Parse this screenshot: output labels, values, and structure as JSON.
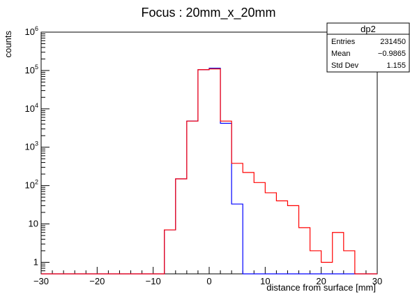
{
  "chart_data": {
    "type": "histogram",
    "title": "Focus : 20mm_x_20mm",
    "xlabel": "distance from surface [mm]",
    "ylabel": "counts",
    "xlim": [
      -30,
      30
    ],
    "ylim": [
      0.5,
      1000000
    ],
    "yscale": "log",
    "grid": false,
    "bin_width": 2,
    "x_ticks": [
      {
        "value": -30,
        "label": "−30"
      },
      {
        "value": -20,
        "label": "−20"
      },
      {
        "value": -10,
        "label": "−10"
      },
      {
        "value": 0,
        "label": "0"
      },
      {
        "value": 10,
        "label": "10"
      },
      {
        "value": 20,
        "label": "20"
      },
      {
        "value": 30,
        "label": "30"
      }
    ],
    "y_ticks": [
      {
        "value": 1,
        "label": "1",
        "sup": ""
      },
      {
        "value": 10,
        "label": "10",
        "sup": ""
      },
      {
        "value": 100,
        "label": "10",
        "sup": "2"
      },
      {
        "value": 1000,
        "label": "10",
        "sup": "3"
      },
      {
        "value": 10000,
        "label": "10",
        "sup": "4"
      },
      {
        "value": 100000,
        "label": "10",
        "sup": "5"
      },
      {
        "value": 1000000,
        "label": "10",
        "sup": "6"
      }
    ],
    "series": [
      {
        "color": "#0000ff",
        "bins": [
          [
            -8,
            7
          ],
          [
            -6,
            150
          ],
          [
            -4,
            4800
          ],
          [
            -2,
            105000
          ],
          [
            0,
            115000
          ],
          [
            2,
            4200
          ],
          [
            4,
            33
          ]
        ]
      },
      {
        "color": "#ff0000",
        "bins": [
          [
            -8,
            7
          ],
          [
            -6,
            150
          ],
          [
            -4,
            4800
          ],
          [
            -2,
            105000
          ],
          [
            0,
            110000
          ],
          [
            2,
            4800
          ],
          [
            4,
            380
          ],
          [
            6,
            220
          ],
          [
            8,
            120
          ],
          [
            10,
            65
          ],
          [
            12,
            40
          ],
          [
            14,
            30
          ],
          [
            16,
            8
          ],
          [
            18,
            2
          ],
          [
            20,
            1
          ],
          [
            22,
            6
          ],
          [
            24,
            2
          ]
        ]
      }
    ],
    "stats_box": {
      "name": "dp2",
      "rows": [
        {
          "label": "Entries",
          "value": "231450"
        },
        {
          "label": "Mean",
          "value": "−0.9865"
        },
        {
          "label": "Std Dev",
          "value": "1.155"
        }
      ]
    }
  }
}
